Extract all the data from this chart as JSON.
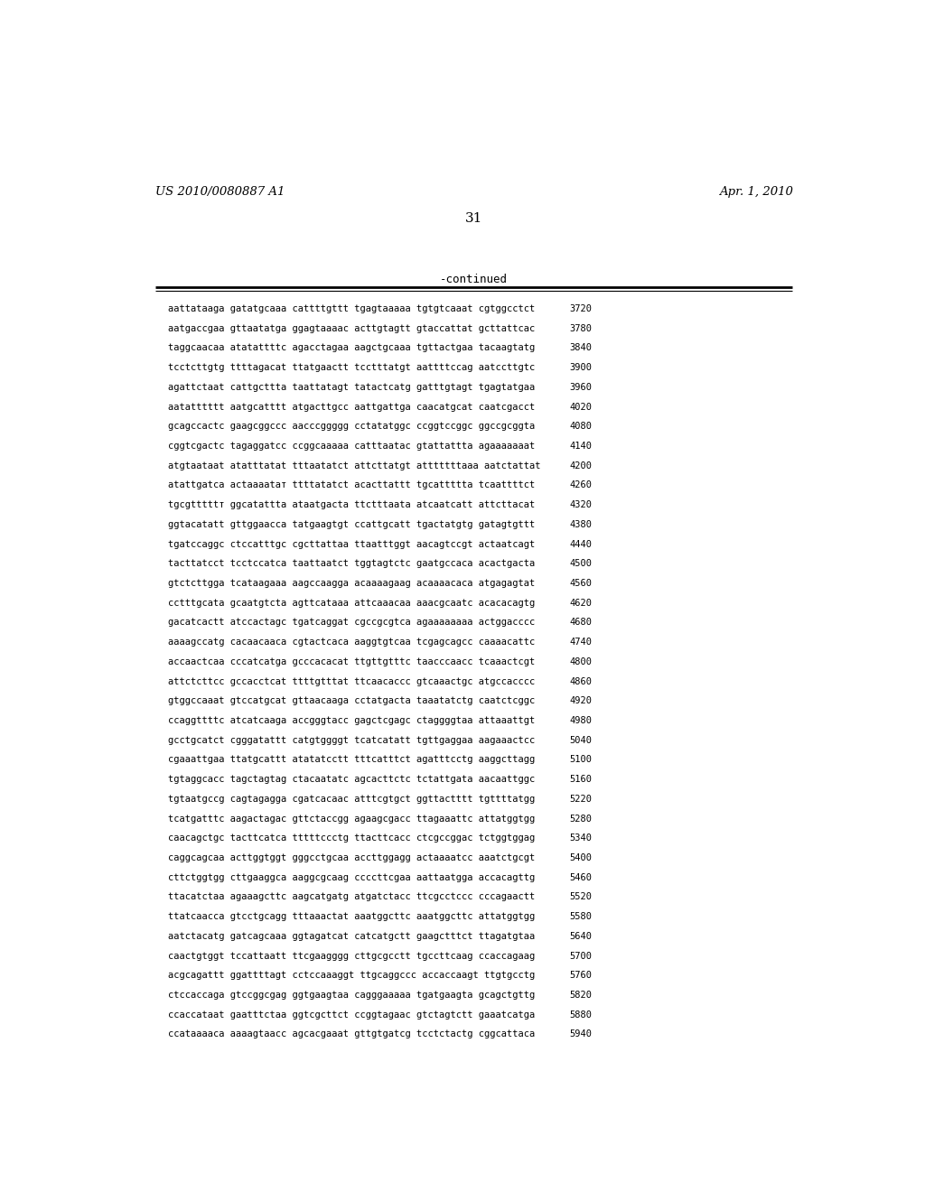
{
  "header_left": "US 2010/0080887 A1",
  "header_right": "Apr. 1, 2010",
  "page_number": "31",
  "continued_label": "-continued",
  "background_color": "#ffffff",
  "text_color": "#000000",
  "font_size_header": 9.5,
  "font_size_page": 11,
  "font_size_continued": 9,
  "font_size_sequence": 7.5,
  "sequence_lines": [
    [
      "aattataaga gatatgcaaa cattttgttt tgagtaaaaa tgtgtcaaat cgtggcctct",
      "3720"
    ],
    [
      "aatgaccgaa gttaatatga ggagtaaaac acttgtagtt gtaccattat gcttattcac",
      "3780"
    ],
    [
      "taggcaacaa atatattttc agacctagaa aagctgcaaa tgttactgaa tacaagtatg",
      "3840"
    ],
    [
      "tcctcttgtg ttttagacat ttatgaactt tcctttatgt aattttccag aatccttgtc",
      "3900"
    ],
    [
      "agattctaat cattgcttta taattatagt tatactcatg gatttgtagt tgagtatgaa",
      "3960"
    ],
    [
      "aatatttttt aatgcatttt atgacttgcc aattgattga caacatgcat caatcgacct",
      "4020"
    ],
    [
      "gcagccactc gaagcggccc aacccggggg cctatatggc ccggtccggc ggccgcggta",
      "4080"
    ],
    [
      "cggtcgactc tagaggatcc ccggcaaaaa catttaatac gtattattta agaaaaaaat",
      "4140"
    ],
    [
      "atgtaataat atatttatat tttaatatct attcttatgt atttttttaaa aatctattat",
      "4200"
    ],
    [
      "atattgatca actaaaatат ttttatatct acacttattt tgcattttta tcaattttct",
      "4260"
    ],
    [
      "tgcgtttttт ggcatattta ataatgacta ttctttaata atcaatcatt attcttacat",
      "4320"
    ],
    [
      "ggtacatatt gttggaacca tatgaagtgt ccattgcatt tgactatgtg gatagtgttt",
      "4380"
    ],
    [
      "tgatccaggc ctccatttgc cgcttattaa ttaatttggt aacagtccgt actaatcagt",
      "4440"
    ],
    [
      "tacttatcct tcctccatca taattaatct tggtagtctc gaatgccaca acactgacta",
      "4500"
    ],
    [
      "gtctcttgga tcataagaaa aagccaagga acaaaagaag acaaaacaca atgagagtat",
      "4560"
    ],
    [
      "cctttgcata gcaatgtcta agttcataaa attcaaacaa aaacgcaatc acacacagtg",
      "4620"
    ],
    [
      "gacatcactt atccactagc tgatcaggat cgccgcgtca agaaaaaaaa actggacccc",
      "4680"
    ],
    [
      "aaaagccatg cacaacaaca cgtactcaca aaggtgtcaa tcgagcagcc caaaacattc",
      "4740"
    ],
    [
      "accaactcaa cccatcatga gcccacacat ttgttgtttc taacccaacc tcaaactcgt",
      "4800"
    ],
    [
      "attctcttcc gccacctcat ttttgtttat ttcaacaccc gtcaaactgc atgccacccc",
      "4860"
    ],
    [
      "gtggccaaat gtccatgcat gttaacaaga cctatgacta taaatatctg caatctcggc",
      "4920"
    ],
    [
      "ccaggttttc atcatcaaga accgggtacc gagctcgagc ctaggggtaa attaaattgt",
      "4980"
    ],
    [
      "gcctgcatct cgggatattt catgtggggt tcatcatatt tgttgaggaa aagaaactcc",
      "5040"
    ],
    [
      "cgaaattgaa ttatgcattt atatatcctt tttcatttct agatttcctg aaggcttagg",
      "5100"
    ],
    [
      "tgtaggcacc tagctagtag ctacaatatc agcacttctc tctattgata aacaattggc",
      "5160"
    ],
    [
      "tgtaatgccg cagtagagga cgatcacaac atttcgtgct ggttactttt tgttttatgg",
      "5220"
    ],
    [
      "tcatgatttc aagactagac gttctaccgg agaagcgacc ttagaaattc attatggtgg",
      "5280"
    ],
    [
      "caacagctgc tacttcatca tttttccctg ttacttcacc ctcgccggac tctggtggag",
      "5340"
    ],
    [
      "caggcagcaa acttggtggt gggcctgcaa accttggagg actaaaatcc aaatctgcgt",
      "5400"
    ],
    [
      "cttctggtgg cttgaaggca aaggcgcaag ccccttcgaa aattaatgga accacagttg",
      "5460"
    ],
    [
      "ttacatctaa agaaagcttc aagcatgatg atgatctacc ttcgcctccc cccagaactt",
      "5520"
    ],
    [
      "ttatcaacca gtcctgcagg tttaaactat aaatggcttc aaatggcttc attatggtgg",
      "5580"
    ],
    [
      "aatctacatg gatcagcaaa ggtagatcat catcatgctt gaagctttct ttagatgtaa",
      "5640"
    ],
    [
      "caactgtggt tccattaatt ttcgaagggg cttgcgcctt tgccttcaag ccaccagaag",
      "5700"
    ],
    [
      "acgcagattt ggattttagt cctccaaaggt ttgcaggccc accaccaagt ttgtgcctg",
      "5760"
    ],
    [
      "ctccaccaga gtccggcgag ggtgaagtaa cagggaaaaa tgatgaagta gcagctgttg",
      "5820"
    ],
    [
      "ccaccataat gaatttctaa ggtcgcttct ccggtagaac gtctagtctt gaaatcatga",
      "5880"
    ],
    [
      "ccataaaaca aaaagtaacc agcacgaaat gttgtgatcg tcctctactg cggcattaca",
      "5940"
    ]
  ]
}
